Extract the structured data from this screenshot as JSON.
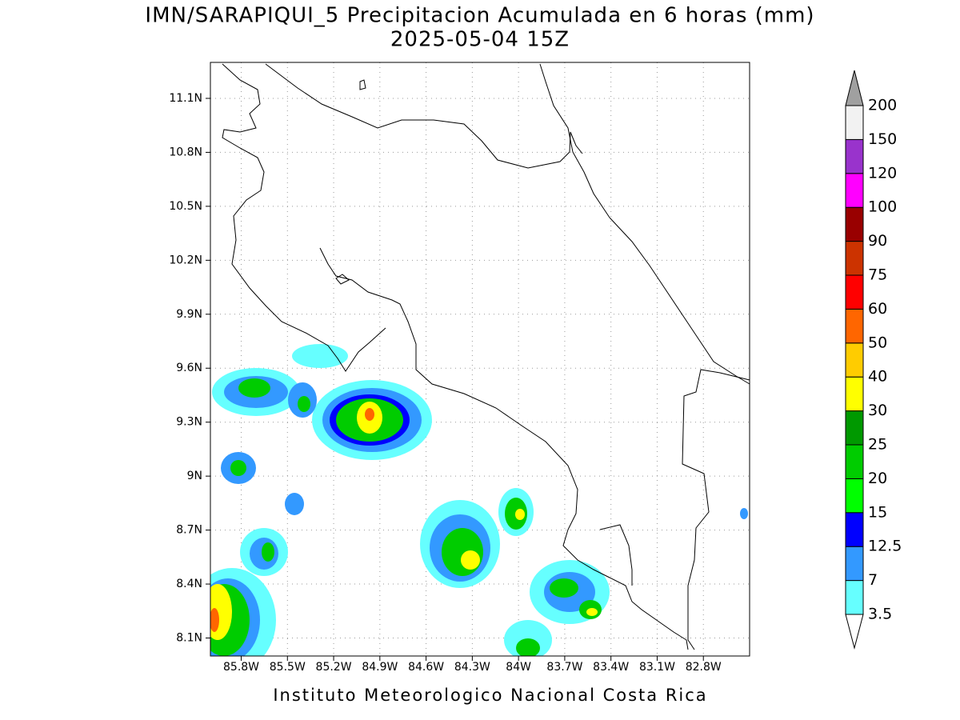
{
  "title": "IMN/SARAPIQUI_5 Precipitacion Acumulada en 6 horas (mm)",
  "subtitle": "2025-05-04 15Z",
  "map": {
    "xlim": [
      -86.0,
      -82.5
    ],
    "ylim": [
      8.0,
      11.3
    ],
    "xticks": [
      {
        "value": -85.8,
        "label": "85.8W"
      },
      {
        "value": -85.5,
        "label": "85.5W"
      },
      {
        "value": -85.2,
        "label": "85.2W"
      },
      {
        "value": -84.9,
        "label": "84.9W"
      },
      {
        "value": -84.6,
        "label": "84.6W"
      },
      {
        "value": -84.3,
        "label": "84.3W"
      },
      {
        "value": -84.0,
        "label": "84W"
      },
      {
        "value": -83.7,
        "label": "83.7W"
      },
      {
        "value": -83.4,
        "label": "83.4W"
      },
      {
        "value": -83.1,
        "label": "83.1W"
      },
      {
        "value": -82.8,
        "label": "82.8W"
      }
    ],
    "yticks": [
      {
        "value": 8.1,
        "label": "8.1N"
      },
      {
        "value": 8.4,
        "label": "8.4N"
      },
      {
        "value": 8.7,
        "label": "8.7N"
      },
      {
        "value": 9.0,
        "label": "9N"
      },
      {
        "value": 9.3,
        "label": "9.3N"
      },
      {
        "value": 9.6,
        "label": "9.6N"
      },
      {
        "value": 9.9,
        "label": "9.9N"
      },
      {
        "value": 10.2,
        "label": "10.2N"
      },
      {
        "value": 10.5,
        "label": "10.5N"
      },
      {
        "value": 10.8,
        "label": "10.8N"
      },
      {
        "value": 11.1,
        "label": "11.1N"
      }
    ],
    "grid": true
  },
  "colorbar": {
    "levels": [
      3.5,
      7,
      12.5,
      15,
      20,
      25,
      30,
      40,
      50,
      60,
      75,
      90,
      100,
      120,
      150,
      200
    ],
    "colors": [
      "#66ffff",
      "#3399ff",
      "#0000ff",
      "#00ff00",
      "#00cc00",
      "#009900",
      "#ffff00",
      "#ffcc00",
      "#ff6600",
      "#ff0000",
      "#cc3300",
      "#990000",
      "#ff00ff",
      "#9933cc",
      "#f2f2f2"
    ],
    "under_color": "#ffffff",
    "over_color": "#a0a0a0"
  },
  "footer": "Instituto Meteorologico Nacional Costa Rica"
}
